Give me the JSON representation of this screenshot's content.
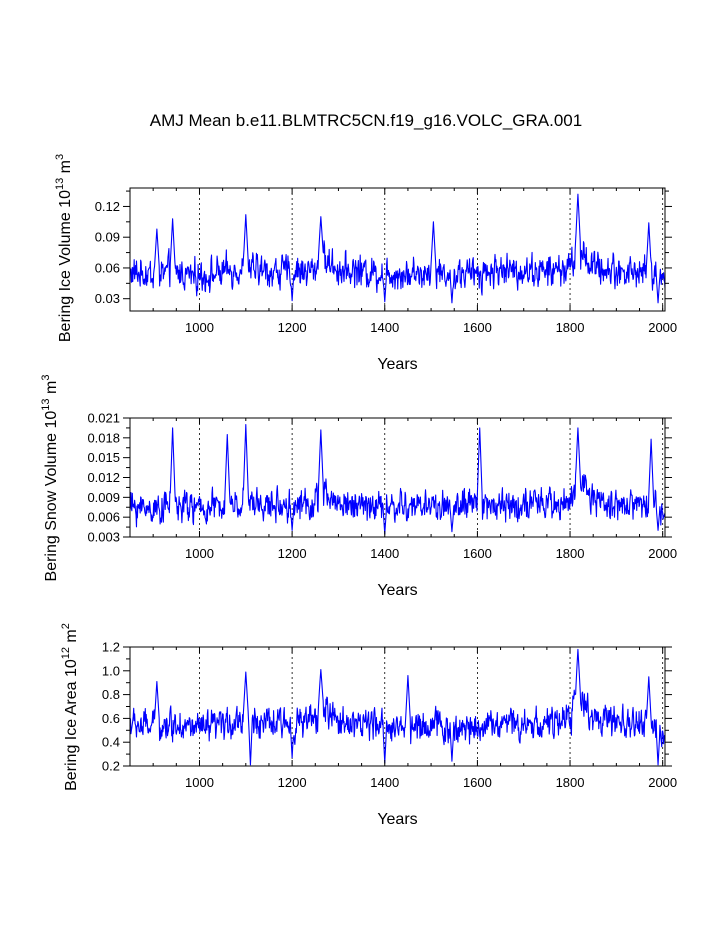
{
  "figure": {
    "title": "AMJ Mean b.e11.BLMTRC5CN.f19_g16.VOLC_GRA.001"
  },
  "colors": {
    "series": "#0000ff",
    "axes": "#000000",
    "background": "#ffffff"
  },
  "chart_data": [
    {
      "type": "line",
      "name": "ice-volume",
      "title": "",
      "xlabel": "Years",
      "ylabel": {
        "main": "Bering Ice Volume 10",
        "sup1": "13",
        "mid": " m",
        "sup2": "3"
      },
      "xlim": [
        850,
        2005
      ],
      "ylim": [
        0.018,
        0.138
      ],
      "xticks": [
        1000,
        1200,
        1400,
        1600,
        1800,
        2000
      ],
      "yticks": [
        0.03,
        0.06,
        0.09,
        0.12
      ],
      "ytick_labels": [
        "0.03",
        "0.06",
        "0.09",
        "0.12"
      ],
      "grid": "dotted vertical lines at major x ticks",
      "series": [
        {
          "name": "Bering Ice Volume",
          "x": [
            850,
            900,
            950,
            1000,
            1050,
            1100,
            1150,
            1200,
            1250,
            1262,
            1300,
            1350,
            1400,
            1450,
            1500,
            1550,
            1600,
            1650,
            1700,
            1750,
            1800,
            1817,
            1850,
            1900,
            1950,
            2005
          ],
          "y": [
            0.055,
            0.054,
            0.056,
            0.052,
            0.055,
            0.06,
            0.056,
            0.057,
            0.058,
            0.07,
            0.059,
            0.057,
            0.055,
            0.054,
            0.056,
            0.053,
            0.055,
            0.058,
            0.057,
            0.056,
            0.06,
            0.08,
            0.061,
            0.057,
            0.056,
            0.052
          ]
        }
      ],
      "peaks": [
        [
          908,
          0.098
        ],
        [
          942,
          0.108
        ],
        [
          1100,
          0.112
        ],
        [
          1262,
          0.11
        ],
        [
          1505,
          0.105
        ],
        [
          1817,
          0.132
        ],
        [
          1970,
          0.104
        ]
      ],
      "troughs": [
        [
          1200,
          0.028
        ],
        [
          1400,
          0.027
        ],
        [
          1545,
          0.026
        ],
        [
          1990,
          0.026
        ]
      ]
    },
    {
      "type": "line",
      "name": "snow-volume",
      "title": "",
      "xlabel": "Years",
      "ylabel": {
        "main": "Bering Snow Volume 10",
        "sup1": "13",
        "mid": " m",
        "sup2": "3"
      },
      "xlim": [
        850,
        2005
      ],
      "ylim": [
        0.003,
        0.021
      ],
      "xticks": [
        1000,
        1200,
        1400,
        1600,
        1800,
        2000
      ],
      "yticks": [
        0.003,
        0.006,
        0.009,
        0.012,
        0.015,
        0.018,
        0.021
      ],
      "ytick_labels": [
        "0.003",
        "0.006",
        "0.009",
        "0.012",
        "0.015",
        "0.018",
        "0.021"
      ],
      "grid": "dotted vertical lines at major x ticks",
      "series": [
        {
          "name": "Bering Snow Volume",
          "x": [
            850,
            900,
            950,
            1000,
            1050,
            1100,
            1150,
            1200,
            1250,
            1262,
            1300,
            1350,
            1400,
            1450,
            1500,
            1550,
            1600,
            1650,
            1700,
            1750,
            1800,
            1817,
            1850,
            1900,
            1950,
            2005
          ],
          "y": [
            0.0075,
            0.0074,
            0.0078,
            0.0072,
            0.0076,
            0.0082,
            0.0077,
            0.0079,
            0.008,
            0.0095,
            0.0081,
            0.0079,
            0.0076,
            0.0075,
            0.0078,
            0.0074,
            0.0077,
            0.008,
            0.0079,
            0.0078,
            0.0084,
            0.011,
            0.0086,
            0.008,
            0.0079,
            0.0073
          ]
        }
      ],
      "peaks": [
        [
          942,
          0.0195
        ],
        [
          1060,
          0.0185
        ],
        [
          1100,
          0.02
        ],
        [
          1262,
          0.0192
        ],
        [
          1605,
          0.0195
        ],
        [
          1817,
          0.0195
        ],
        [
          1975,
          0.0178
        ]
      ],
      "troughs": [
        [
          1200,
          0.004
        ],
        [
          1400,
          0.0035
        ],
        [
          1545,
          0.0038
        ],
        [
          1990,
          0.004
        ]
      ]
    },
    {
      "type": "line",
      "name": "ice-area",
      "title": "",
      "xlabel": "Years",
      "ylabel": {
        "main": "Bering Ice Area 10",
        "sup1": "12",
        "mid": " m",
        "sup2": "2"
      },
      "xlim": [
        850,
        2005
      ],
      "ylim": [
        0.2,
        1.2
      ],
      "xticks": [
        1000,
        1200,
        1400,
        1600,
        1800,
        2000
      ],
      "yticks": [
        0.2,
        0.4,
        0.6,
        0.8,
        1.0,
        1.2
      ],
      "ytick_labels": [
        "0.2",
        "0.4",
        "0.6",
        "0.8",
        "1.0",
        "1.2"
      ],
      "grid": "dotted vertical lines at major x ticks",
      "series": [
        {
          "name": "Bering Ice Area",
          "x": [
            850,
            900,
            950,
            1000,
            1050,
            1100,
            1150,
            1200,
            1250,
            1262,
            1300,
            1350,
            1400,
            1450,
            1500,
            1550,
            1600,
            1650,
            1700,
            1750,
            1800,
            1817,
            1850,
            1900,
            1950,
            2005
          ],
          "y": [
            0.55,
            0.53,
            0.56,
            0.5,
            0.54,
            0.6,
            0.55,
            0.56,
            0.58,
            0.7,
            0.58,
            0.56,
            0.53,
            0.52,
            0.55,
            0.51,
            0.54,
            0.57,
            0.56,
            0.55,
            0.6,
            0.78,
            0.6,
            0.55,
            0.55,
            0.48
          ]
        }
      ],
      "peaks": [
        [
          908,
          0.91
        ],
        [
          1100,
          0.99
        ],
        [
          1262,
          1.01
        ],
        [
          1450,
          0.96
        ],
        [
          1817,
          1.18
        ],
        [
          1970,
          0.95
        ]
      ],
      "troughs": [
        [
          1110,
          0.2
        ],
        [
          1200,
          0.27
        ],
        [
          1400,
          0.23
        ],
        [
          1545,
          0.24
        ],
        [
          1990,
          0.21
        ]
      ]
    }
  ]
}
